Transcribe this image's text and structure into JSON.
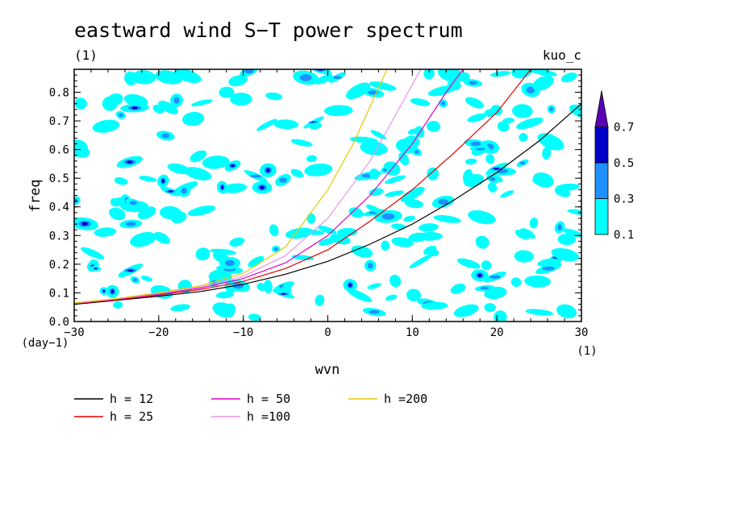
{
  "chart_data": {
    "type": "heatmap",
    "title": "eastward wind S−T power spectrum",
    "subtitle_left": "(1)",
    "subtitle_right": "kuo_c",
    "xlabel": "wvn",
    "ylabel": "freq",
    "x_unit": "(1)",
    "y_unit": "(day−1)",
    "xlim": [
      -30,
      30
    ],
    "ylim": [
      0,
      0.88
    ],
    "x_ticks": [
      {
        "value": -30,
        "label": "−30"
      },
      {
        "value": -20,
        "label": "−20"
      },
      {
        "value": -10,
        "label": "−10"
      },
      {
        "value": 0,
        "label": "0"
      },
      {
        "value": 10,
        "label": "10"
      },
      {
        "value": 20,
        "label": "20"
      },
      {
        "value": 30,
        "label": "30"
      }
    ],
    "y_ticks": [
      {
        "value": 0,
        "label": "0.0"
      },
      {
        "value": 0.1,
        "label": "0.1"
      },
      {
        "value": 0.2,
        "label": "0.2"
      },
      {
        "value": 0.3,
        "label": "0.3"
      },
      {
        "value": 0.4,
        "label": "0.4"
      },
      {
        "value": 0.5,
        "label": "0.5"
      },
      {
        "value": 0.6,
        "label": "0.6"
      },
      {
        "value": 0.7,
        "label": "0.7"
      },
      {
        "value": 0.8,
        "label": "0.8"
      }
    ],
    "colorbar": {
      "levels": [
        "0.1",
        "0.3",
        "0.5",
        "0.7"
      ],
      "colors": [
        "#00ffff",
        "#1e90ff",
        "#0000c8",
        "#5a00b4"
      ]
    },
    "curves": [
      {
        "name": "h = 12",
        "color": "#000000",
        "points": [
          [
            -30,
            0.06
          ],
          [
            -25,
            0.074
          ],
          [
            -20,
            0.088
          ],
          [
            -15,
            0.105
          ],
          [
            -10,
            0.13
          ],
          [
            -5,
            0.165
          ],
          [
            0,
            0.21
          ],
          [
            5,
            0.27
          ],
          [
            10,
            0.34
          ],
          [
            15,
            0.425
          ],
          [
            20,
            0.52
          ],
          [
            25,
            0.63
          ],
          [
            30,
            0.76
          ]
        ]
      },
      {
        "name": "h = 25",
        "color": "#e00000",
        "points": [
          [
            -30,
            0.062
          ],
          [
            -25,
            0.076
          ],
          [
            -20,
            0.092
          ],
          [
            -15,
            0.112
          ],
          [
            -10,
            0.14
          ],
          [
            -5,
            0.185
          ],
          [
            0,
            0.25
          ],
          [
            5,
            0.35
          ],
          [
            10,
            0.46
          ],
          [
            15,
            0.59
          ],
          [
            20,
            0.73
          ],
          [
            24,
            0.88
          ]
        ]
      },
      {
        "name": "h = 50",
        "color": "#e000c8",
        "points": [
          [
            -30,
            0.063
          ],
          [
            -25,
            0.078
          ],
          [
            -20,
            0.095
          ],
          [
            -15,
            0.117
          ],
          [
            -10,
            0.15
          ],
          [
            -5,
            0.205
          ],
          [
            0,
            0.3
          ],
          [
            5,
            0.44
          ],
          [
            10,
            0.62
          ],
          [
            14,
            0.8
          ],
          [
            16,
            0.88
          ]
        ]
      },
      {
        "name": "h =100",
        "color": "#e696e6",
        "points": [
          [
            -30,
            0.064
          ],
          [
            -25,
            0.079
          ],
          [
            -20,
            0.098
          ],
          [
            -15,
            0.121
          ],
          [
            -10,
            0.158
          ],
          [
            -5,
            0.23
          ],
          [
            0,
            0.36
          ],
          [
            5,
            0.56
          ],
          [
            8,
            0.72
          ],
          [
            11,
            0.88
          ]
        ]
      },
      {
        "name": "h =200",
        "color": "#e6c800",
        "points": [
          [
            -30,
            0.065
          ],
          [
            -25,
            0.08
          ],
          [
            -20,
            0.1
          ],
          [
            -15,
            0.125
          ],
          [
            -10,
            0.168
          ],
          [
            -5,
            0.26
          ],
          [
            0,
            0.46
          ],
          [
            3,
            0.62
          ],
          [
            5,
            0.75
          ],
          [
            7,
            0.88
          ]
        ]
      }
    ]
  }
}
